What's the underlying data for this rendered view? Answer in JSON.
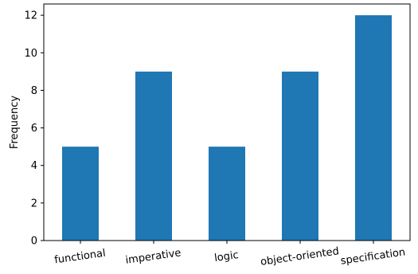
{
  "chart_data": {
    "type": "bar",
    "title": "",
    "xlabel": "",
    "ylabel": "Frequency",
    "categories": [
      "functional",
      "imperative",
      "logic",
      "object-oriented",
      "specification"
    ],
    "values": [
      5,
      9,
      5,
      9,
      12
    ],
    "ylim": [
      0,
      12.6
    ],
    "yticks": [
      0,
      2,
      4,
      6,
      8,
      10,
      12
    ],
    "bar_color": "#1f77b4",
    "grid": false,
    "legend": "none",
    "xtick_rotation_deg": -8
  }
}
